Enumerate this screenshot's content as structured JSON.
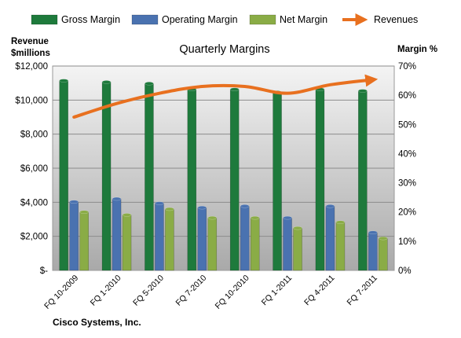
{
  "chart_data": {
    "type": "bar",
    "title": "Quarterly Margins",
    "company": "Cisco Systems, Inc.",
    "ylabel_left": "Revenue $millions",
    "ylabel_left_lines": [
      "Revenue",
      "$millions"
    ],
    "ylabel_right": "Margin %",
    "categories": [
      "FQ 10-2009",
      "FQ 1-2010",
      "FQ 5-2010",
      "FQ 7-2010",
      "FQ 10-2010",
      "FQ 1-2011",
      "FQ 4-2011",
      "FQ 7-2011"
    ],
    "left_axis": {
      "min": 0,
      "max": 12000,
      "ticks": [
        "$-",
        "$2,000",
        "$4,000",
        "$6,000",
        "$8,000",
        "$10,000",
        "$12,000"
      ]
    },
    "right_axis": {
      "min": 0,
      "max": 70,
      "ticks": [
        "0%",
        "10%",
        "20%",
        "30%",
        "40%",
        "50%",
        "60%",
        "70%"
      ]
    },
    "series": [
      {
        "name": "Gross Margin",
        "axis": "right",
        "kind": "bar",
        "color": "#1e7a3c",
        "values": [
          65,
          64.5,
          64,
          62,
          62,
          61,
          62,
          61.5
        ]
      },
      {
        "name": "Operating Margin",
        "axis": "right",
        "kind": "bar",
        "color": "#4a72b0",
        "values": [
          23.5,
          24.5,
          23,
          21.5,
          22,
          18,
          22,
          13
        ]
      },
      {
        "name": "Net Margin",
        "axis": "right",
        "kind": "bar",
        "color": "#8aac46",
        "values": [
          20,
          19,
          21,
          18,
          18,
          14.5,
          16.5,
          11
        ]
      },
      {
        "name": "Revenues",
        "axis": "left",
        "kind": "line",
        "color": "#e8701f",
        "values": [
          9000,
          9800,
          10400,
          10800,
          10800,
          10400,
          10900,
          11200
        ]
      }
    ],
    "grid": true,
    "legend_position": "top"
  }
}
